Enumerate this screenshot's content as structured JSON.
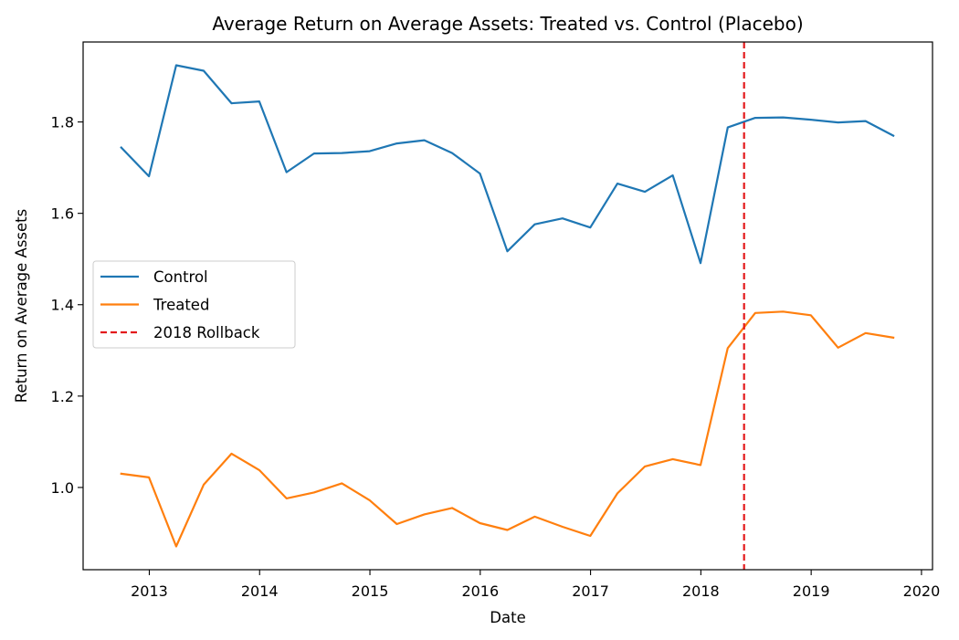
{
  "chart_data": {
    "type": "line",
    "title": "Average Return on Average Assets: Treated vs. Control (Placebo)",
    "xlabel": "Date",
    "ylabel": "Return on Average Assets",
    "x_tick_labels": [
      "2013",
      "2014",
      "2015",
      "2016",
      "2017",
      "2018",
      "2019",
      "2020"
    ],
    "y_tick_labels": [
      "1.0",
      "1.2",
      "1.4",
      "1.6",
      "1.8"
    ],
    "xlim": [
      2012.4,
      2020.1
    ],
    "ylim": [
      0.82,
      1.975
    ],
    "grid": false,
    "legend_position": "center-left",
    "x": [
      "2012-09-30",
      "2012-12-31",
      "2013-03-31",
      "2013-06-30",
      "2013-09-30",
      "2013-12-31",
      "2014-03-31",
      "2014-06-30",
      "2014-09-30",
      "2014-12-31",
      "2015-03-31",
      "2015-06-30",
      "2015-09-30",
      "2015-12-31",
      "2016-03-31",
      "2016-06-30",
      "2016-09-30",
      "2016-12-31",
      "2017-03-31",
      "2017-06-30",
      "2017-09-30",
      "2017-12-31",
      "2018-03-31",
      "2018-06-30",
      "2018-09-30",
      "2018-12-31",
      "2019-03-31",
      "2019-06-30",
      "2019-09-30"
    ],
    "series": [
      {
        "name": "Control",
        "color": "#1f77b4",
        "style": "solid",
        "values": [
          1.744,
          1.681,
          1.924,
          1.912,
          1.841,
          1.845,
          1.69,
          1.731,
          1.732,
          1.736,
          1.753,
          1.76,
          1.732,
          1.687,
          1.517,
          1.576,
          1.589,
          1.569,
          1.665,
          1.647,
          1.683,
          1.491,
          1.788,
          1.809,
          1.81,
          1.805,
          1.799,
          1.802,
          1.77
        ]
      },
      {
        "name": "Treated",
        "color": "#ff7f0e",
        "style": "solid",
        "values": [
          1.03,
          1.022,
          0.871,
          1.006,
          1.074,
          1.038,
          0.976,
          0.989,
          1.009,
          0.972,
          0.92,
          0.941,
          0.955,
          0.922,
          0.907,
          0.936,
          0.914,
          0.894,
          0.987,
          1.046,
          1.062,
          1.049,
          1.305,
          1.382,
          1.385,
          1.377,
          1.306,
          1.338,
          1.328
        ]
      }
    ],
    "vlines": [
      {
        "name": "2018 Rollback",
        "x": "2018-05-24",
        "color": "#e31a1c",
        "style": "dashed"
      }
    ]
  }
}
